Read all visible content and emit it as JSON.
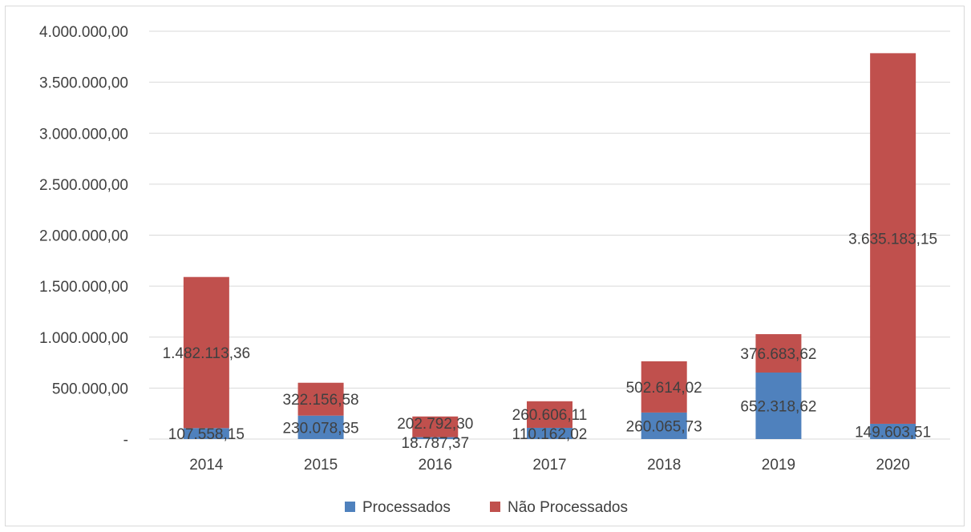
{
  "chart_data": {
    "type": "bar",
    "stacked": true,
    "categories": [
      "2014",
      "2015",
      "2016",
      "2017",
      "2018",
      "2019",
      "2020"
    ],
    "series": [
      {
        "name": "Processados",
        "color": "#4f81bd",
        "values": [
          107558.15,
          230078.35,
          18787.37,
          110162.02,
          260065.73,
          652318.62,
          149603.51
        ],
        "labels": [
          "107.558,15",
          "230.078,35",
          "18.787,37",
          "110.162,02",
          "260.065,73",
          "652.318,62",
          "149.603,51"
        ]
      },
      {
        "name": "Não Processados",
        "color": "#c0504d",
        "values": [
          1482113.36,
          322156.58,
          202792.3,
          260606.11,
          502614.02,
          376683.62,
          3635183.15
        ],
        "labels": [
          "1.482.113,36",
          "322.156,58",
          "202.792,30",
          "260.606,11",
          "502.614,02",
          "376.683,62",
          "3.635.183,15"
        ]
      }
    ],
    "y_ticks": [
      {
        "value": 0,
        "label": "-"
      },
      {
        "value": 500000,
        "label": "500.000,00"
      },
      {
        "value": 1000000,
        "label": "1.000.000,00"
      },
      {
        "value": 1500000,
        "label": "1.500.000,00"
      },
      {
        "value": 2000000,
        "label": "2.000.000,00"
      },
      {
        "value": 2500000,
        "label": "2.500.000,00"
      },
      {
        "value": 3000000,
        "label": "3.000.000,00"
      },
      {
        "value": 3500000,
        "label": "3.500.000,00"
      },
      {
        "value": 4000000,
        "label": "4.000.000,00"
      }
    ],
    "ylim": [
      0,
      4000000
    ],
    "grid": true,
    "legend_position": "bottom",
    "gridline_color": "#d9d9d9",
    "label_color": "#404040"
  }
}
